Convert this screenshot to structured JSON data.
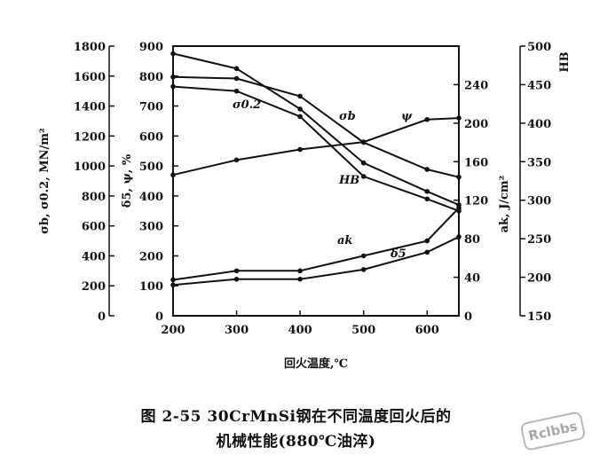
{
  "caption": {
    "line1": "图 2-55   30CrMnSi钢在不同温度回火后的",
    "line2": "机械性能(880℃油淬)"
  },
  "watermark": "Rclbbs",
  "chart_data": {
    "type": "line",
    "xlabel": "回火温度,℃",
    "x_ticks": [
      200,
      300,
      400,
      500,
      600
    ],
    "xlim": [
      200,
      650
    ],
    "axes": {
      "strength": {
        "label": "σb, σ0.2, MN/m²",
        "ylim": [
          0,
          1800
        ],
        "ticks": [
          0,
          200,
          400,
          600,
          800,
          1000,
          1200,
          1400,
          1600,
          1800
        ]
      },
      "ductility": {
        "label": "δ5, ψ, %",
        "ylim": [
          0,
          900
        ],
        "ticks": [
          0,
          100,
          200,
          300,
          400,
          500,
          600,
          700,
          800,
          900
        ]
      },
      "impact": {
        "label": "ak, J/cm²",
        "ylim": [
          0,
          280
        ],
        "ticks": [
          0,
          40,
          80,
          120,
          160,
          200,
          240
        ]
      },
      "hardness": {
        "label": "HB",
        "ylim": [
          150,
          500
        ],
        "ticks": [
          150,
          200,
          250,
          300,
          350,
          400,
          450,
          500
        ]
      }
    },
    "series": [
      {
        "name": "σb",
        "axis": "strength",
        "x": [
          200,
          300,
          400,
          500,
          600,
          650
        ],
        "y": [
          1750,
          1650,
          1380,
          1020,
          830,
          740
        ]
      },
      {
        "name": "σ0.2",
        "axis": "strength",
        "x": [
          200,
          300,
          400,
          500,
          600,
          650
        ],
        "y": [
          1530,
          1500,
          1330,
          930,
          780,
          700
        ]
      },
      {
        "name": "HB",
        "axis": "hardness",
        "x": [
          200,
          300,
          400,
          500,
          600,
          650
        ],
        "y": [
          460,
          458,
          435,
          375,
          340,
          330
        ]
      },
      {
        "name": "ψ",
        "axis": "ductility",
        "x": [
          200,
          300,
          400,
          500,
          600,
          650
        ],
        "y": [
          470,
          520,
          555,
          580,
          655,
          660
        ]
      },
      {
        "name": "δ5",
        "axis": "ductility",
        "x": [
          200,
          300,
          400,
          500,
          600,
          650
        ],
        "y": [
          120,
          150,
          150,
          200,
          250,
          360
        ]
      },
      {
        "name": "ak",
        "axis": "impact",
        "x": [
          200,
          300,
          400,
          500,
          600,
          650
        ],
        "y": [
          32,
          38,
          38,
          48,
          66,
          82
        ]
      }
    ]
  }
}
